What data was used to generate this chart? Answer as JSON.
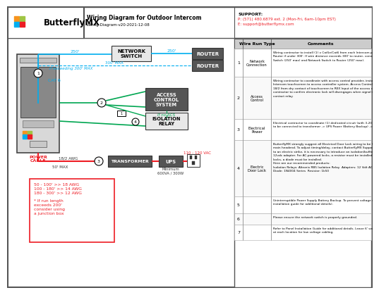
{
  "title": "Wiring Diagram for Outdoor Intercom",
  "subtitle": "Wiring-Diagram-v20-2021-12-08",
  "support_text": "SUPPORT:",
  "support_phone": "P: (571) 480.6879 ext. 2 (Mon-Fri, 6am-10pm EST)",
  "support_email": "E: support@butterflymx.com",
  "bg_color": "#ffffff",
  "cyan_color": "#00aeef",
  "green_color": "#00a651",
  "red_color": "#ed1c24",
  "dark_box_color": "#555555",
  "light_box_color": "#e8e8e8",
  "wire_run_header": "Wire Run Type",
  "comments_header": "Comments",
  "table_rows": [
    {
      "num": "1",
      "type": "Network\nConnection",
      "comment": "Wiring contractor to install (1) x Cat5e/Cat6 from each Intercom panel location directly to\nRouter if under 300'. If wire distance exceeds 300' to router, connect Panel to Network\nSwitch (250' max) and Network Switch to Router (250' max)."
    },
    {
      "num": "2",
      "type": "Access\nControl",
      "comment": "Wiring contractor to coordinate with access control provider, install (1) x 18/2 from each\nIntercom touchscreen to access controller system. Access Control provider to terminate\n18/2 from dry contact of touchscreen to REX Input of the access control. Access control\ncontractor to confirm electronic lock will disengages when signal is sent through dry\ncontact relay."
    },
    {
      "num": "3",
      "type": "Electrical\nPower",
      "comment": "Electrical contractor to coordinate (1) dedicated circuit (with 3-20 receptacle). Panel\nto be connected to transformer -> UPS Power (Battery Backup) -> Wall outlet"
    },
    {
      "num": "4",
      "type": "Electric\nDoor Lock",
      "comment": "ButterflyMX strongly suggest all Electrical Door Lock wiring to be home-run directly to\nmain headend. To adjust timing/delay, contact ButterflyMX Support. To wire directly\nto an electric strike, it is necessary to introduce an isolation/buffer relay with a\n12vdc adapter. For AC-powered locks, a resistor must be installed. For DC-powered\nlocks, a diode must be installed.\nHere are our recommended products:\nIsolation Relays: Altronix RB5 Isolation Relay  Adapters: 12 Volt AC to DC Adapter\nDiode: 1N4004 Series  Resistor: 1k50"
    },
    {
      "num": "5",
      "type": "",
      "comment": "Uninterruptible Power Supply Battery Backup. To prevent voltage drops and surges, ButterflyMX requires installing a UPS device (see panel\ninstallation guide for additional details)."
    },
    {
      "num": "6",
      "type": "",
      "comment": "Please ensure the network switch is properly grounded."
    },
    {
      "num": "7",
      "type": "",
      "comment": "Refer to Panel Installation Guide for additional details. Leave 6' service loop\nat each location for low voltage cabling."
    }
  ],
  "network_switch_label": "NETWORK\nSWITCH",
  "router_label": "ROUTER",
  "access_control_label": "ACCESS\nCONTROL\nSYSTEM",
  "isolation_relay_label": "ISOLATION\nRELAY",
  "transformer_label": "TRANSFORMER",
  "ups_label": "UPS",
  "power_cable_label": "POWER\nCABLE",
  "cat6_label": "CAT 6",
  "if_no_acs_label": "If no ACS",
  "if_exceeding_label": "If exceeding 300' MAX",
  "dist_250_1": "250'",
  "dist_250_2": "250'",
  "dist_300": "300' MAX",
  "dist_50": "50' MAX",
  "dist_110_120": "110 - 120 VAC",
  "awg_label": "18/2 AWG",
  "min_ups": "Minimum\n600VA / 300W",
  "red_box_text": "50 - 100' >> 18 AWG\n100 - 180' >> 14 AWG\n180 - 300' >> 12 AWG\n\n* If run length\nexceeds 200'\nconsider using\na junction box"
}
